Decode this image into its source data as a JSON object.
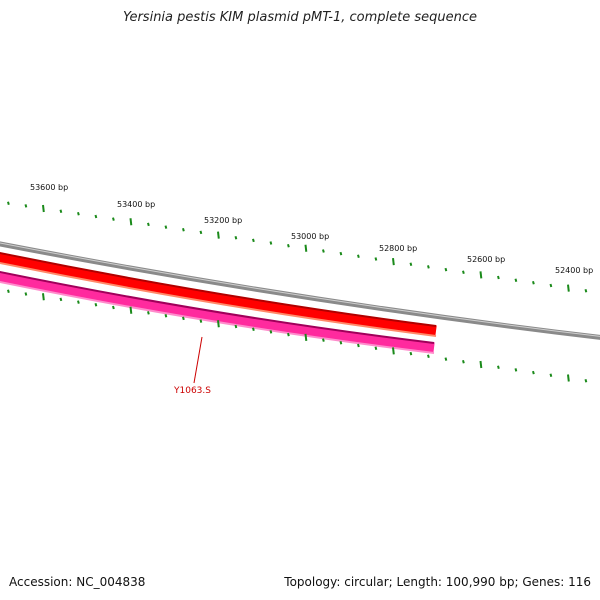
{
  "title": "Yersinia pestis KIM plasmid pMT-1, complete sequence",
  "accession_text": "Accession: NC_004838",
  "summary_text": "Topology: circular; Length: 100,990 bp; Genes: 116",
  "scale_labels": [
    "53600 bp",
    "53400 bp",
    "53200 bp",
    "53000 bp",
    "52800 bp",
    "52600 bp",
    "52400 bp"
  ],
  "gene_label": "Y1063.S",
  "colors": {
    "backbone": "#8a8a8a",
    "forward_strand": "#ff0000",
    "reverse_strand": "#ff2a9e",
    "tick": "#1a8a1a",
    "gene_label": "#cc0000"
  }
}
